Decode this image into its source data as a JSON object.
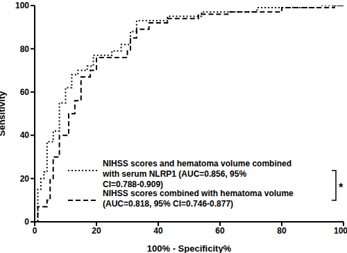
{
  "chart_data": {
    "type": "line",
    "title": null,
    "x_label": "100% - Specificity%",
    "y_label": "Sensitivity",
    "xlim": [
      0,
      100
    ],
    "ylim": [
      0,
      100
    ],
    "xticks": [
      0,
      20,
      40,
      60,
      80,
      100
    ],
    "yticks": [
      0,
      20,
      40,
      60,
      80,
      100
    ],
    "grid": false,
    "legend": "lower right",
    "annotations": [
      "*"
    ],
    "series": [
      {
        "name": "NIHSS scores and hematoma volume combined with serum NLRP1 (AUC=0.856, 95% CI=0.788-0.909)",
        "color": "#000000",
        "line_style": "dotted",
        "x": [
          0,
          1,
          1,
          1,
          2,
          2,
          3,
          3,
          4,
          4,
          6,
          6,
          8,
          8,
          10,
          10,
          12,
          12,
          14,
          14,
          17,
          17,
          19,
          19,
          25,
          25,
          28,
          28,
          31,
          31,
          33,
          33,
          43,
          43,
          54,
          54,
          72,
          72,
          93,
          93,
          100
        ],
        "values": [
          0,
          0,
          10,
          15,
          15,
          20,
          20,
          23,
          23,
          37,
          37,
          42,
          42,
          55,
          55,
          62,
          62,
          68,
          68,
          70,
          70,
          72,
          72,
          77,
          77,
          79,
          79,
          82,
          82,
          88,
          88,
          93,
          93,
          95,
          95,
          97,
          97,
          99,
          99,
          100,
          100
        ]
      },
      {
        "name": "NIHSS scores combined with hematoma volume (AUC=0.818, 95% CI=0.746-0.877)",
        "color": "#000000",
        "line_style": "dashed",
        "x": [
          0,
          1,
          1,
          4,
          4,
          5,
          5,
          6,
          6,
          8,
          8,
          11,
          11,
          13,
          13,
          15,
          15,
          18,
          18,
          20,
          20,
          30,
          30,
          31,
          31,
          33,
          33,
          37,
          37,
          43,
          43,
          53,
          53,
          63,
          63,
          80,
          80,
          97,
          97,
          100
        ],
        "values": [
          0,
          0,
          7,
          7,
          10,
          10,
          20,
          20,
          30,
          30,
          40,
          40,
          50,
          50,
          56,
          56,
          67,
          67,
          70,
          70,
          76,
          76,
          79,
          79,
          85,
          85,
          89,
          89,
          92,
          92,
          94,
          94,
          96,
          96,
          97,
          97,
          99,
          99,
          100,
          100
        ]
      }
    ]
  }
}
